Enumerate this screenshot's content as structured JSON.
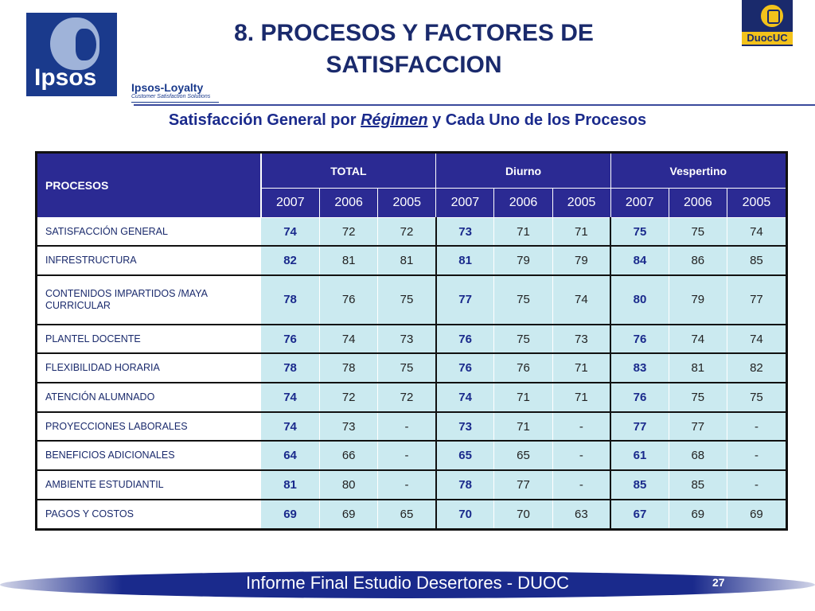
{
  "logos": {
    "ipsos_word": "Ipsos",
    "loyalty_line1": "Ipsos-Loyalty",
    "loyalty_line2": "Customer Satisfaction Solutions",
    "duoc_word": "DuocUC"
  },
  "title_line1": "8. PROCESOS Y FACTORES DE",
  "title_line2": "SATISFACCION",
  "subtitle": {
    "part1": "Satisfacción General por ",
    "italic": "Régimen",
    "part2": " y Cada Uno de los Procesos"
  },
  "table": {
    "proc_header": "PROCESOS",
    "groups": [
      "TOTAL",
      "Diurno",
      "Vespertino"
    ],
    "years": [
      "2007",
      "2006",
      "2005",
      "2007",
      "2006",
      "2005",
      "2007",
      "2006",
      "2005"
    ],
    "rows": [
      {
        "label": "SATISFACCIÓN GENERAL",
        "values": [
          "74",
          "72",
          "72",
          "73",
          "71",
          "71",
          "75",
          "75",
          "74"
        ]
      },
      {
        "label": "INFRESTRUCTURA",
        "values": [
          "82",
          "81",
          "81",
          "81",
          "79",
          "79",
          "84",
          "86",
          "85"
        ]
      },
      {
        "label": "CONTENIDOS IMPARTIDOS /MAYA CURRICULAR",
        "values": [
          "78",
          "76",
          "75",
          "77",
          "75",
          "74",
          "80",
          "79",
          "77"
        ]
      },
      {
        "label": "PLANTEL DOCENTE",
        "values": [
          "76",
          "74",
          "73",
          "76",
          "75",
          "73",
          "76",
          "74",
          "74"
        ]
      },
      {
        "label": "FLEXIBILIDAD HORARIA",
        "values": [
          "78",
          "78",
          "75",
          "76",
          "76",
          "71",
          "83",
          "81",
          "82"
        ]
      },
      {
        "label": "ATENCIÓN ALUMNADO",
        "values": [
          "74",
          "72",
          "72",
          "74",
          "71",
          "71",
          "76",
          "75",
          "75"
        ]
      },
      {
        "label": "PROYECCIONES LABORALES",
        "values": [
          "74",
          "73",
          "-",
          "73",
          "71",
          "-",
          "77",
          "77",
          "-"
        ]
      },
      {
        "label": "BENEFICIOS ADICIONALES",
        "values": [
          "64",
          "66",
          "-",
          "65",
          "65",
          "-",
          "61",
          "68",
          "-"
        ]
      },
      {
        "label": "AMBIENTE ESTUDIANTIL",
        "values": [
          "81",
          "80",
          "-",
          "78",
          "77",
          "-",
          "85",
          "85",
          "-"
        ]
      },
      {
        "label": "PAGOS Y COSTOS",
        "values": [
          "69",
          "69",
          "65",
          "70",
          "70",
          "63",
          "67",
          "69",
          "69"
        ]
      }
    ]
  },
  "footer": {
    "text": "Informe Final Estudio Desertores - DUOC",
    "page_number": "27"
  },
  "colors": {
    "header_bg": "#2b2a93",
    "cell_bg": "#cbeaf0",
    "title": "#1a2a6c",
    "footer_band": "#1a2a8c"
  }
}
